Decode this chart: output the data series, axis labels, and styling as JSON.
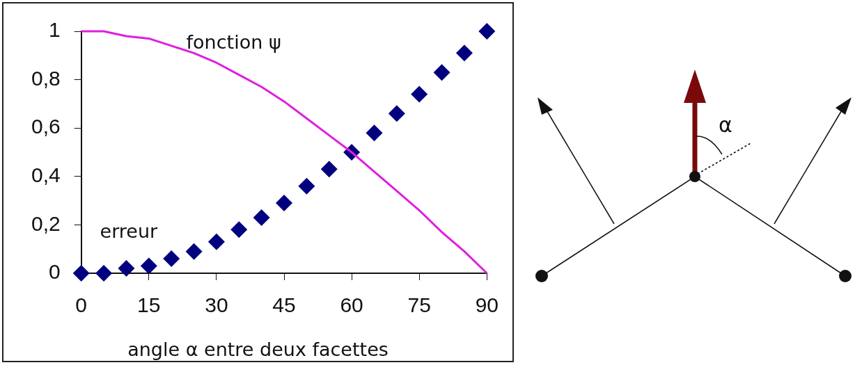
{
  "chart_data": {
    "type": "scatter",
    "xlabel": "angle α entre deux facettes",
    "x": [
      0,
      5,
      10,
      15,
      20,
      25,
      30,
      35,
      40,
      45,
      50,
      55,
      60,
      65,
      70,
      75,
      80,
      85,
      90
    ],
    "xlim": [
      0,
      90
    ],
    "xticks": [
      0,
      15,
      30,
      45,
      60,
      75,
      90
    ],
    "ylim": [
      0,
      1
    ],
    "yticks": [
      0,
      {
        "value": 0.2,
        "label": "0,2"
      },
      {
        "value": 0.4,
        "label": "0,4"
      },
      {
        "value": 0.6,
        "label": "0,6"
      },
      {
        "value": 0.8,
        "label": "0,8"
      },
      1
    ],
    "grid": false,
    "series": [
      {
        "name": "fonction ψ",
        "type": "line",
        "marker": "none",
        "color": "#e01ee0",
        "values": [
          1,
          1.0,
          0.98,
          0.97,
          0.94,
          0.91,
          0.87,
          0.82,
          0.77,
          0.71,
          0.64,
          0.57,
          0.5,
          0.42,
          0.34,
          0.26,
          0.17,
          0.09,
          0
        ]
      },
      {
        "name": "erreur",
        "type": "scatter",
        "marker": "diamond",
        "color": "#00007f",
        "values": [
          0,
          0.0,
          0.02,
          0.03,
          0.06,
          0.09,
          0.13,
          0.18,
          0.23,
          0.29,
          0.36,
          0.43,
          0.5,
          0.58,
          0.66,
          0.74,
          0.83,
          0.91,
          1
        ]
      }
    ],
    "annotations": [
      "α"
    ]
  }
}
